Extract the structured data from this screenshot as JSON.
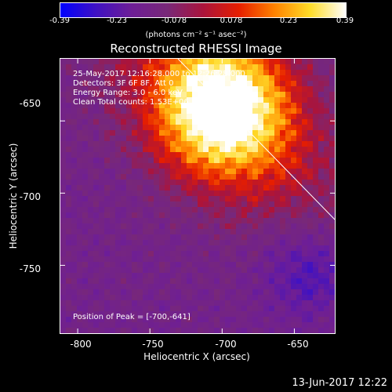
{
  "colorbar": {
    "ticks": [
      "-0.39",
      "-0.23",
      "-0.078",
      "0.078",
      "0.23",
      "0.39"
    ],
    "unit": "(photons cm⁻² s⁻¹ asec⁻²)"
  },
  "info": {
    "line1": "25-May-2017 12:16:28.000 to 12:26:28.000",
    "line2": "Detectors: 3F 6F 8F, Att 0",
    "line3": "Energy Range: 3.0 - 6.0 keV",
    "line4": "Clean    Total counts: 1.53E+06",
    "peak": "Position of Peak = [-700,-641]"
  },
  "footer": "13-Jun-2017 12:22",
  "chart_data": {
    "type": "heatmap",
    "title": "Reconstructed RHESSI Image",
    "xlabel": "Heliocentric X (arcsec)",
    "ylabel": "Heliocentric Y (arcsec)",
    "xlim": [
      -812,
      -622
    ],
    "ylim": [
      -797,
      -607
    ],
    "x_ticks": [
      "-800",
      "-750",
      "-700",
      "-650"
    ],
    "x_tick_values": [
      -800,
      -750,
      -700,
      -650
    ],
    "y_ticks": [
      "-650",
      "-700",
      "-750"
    ],
    "y_tick_values": [
      -650,
      -700,
      -750
    ],
    "value_range": [
      -0.39,
      0.39
    ],
    "peak": [
      -700,
      -641
    ],
    "colors": {
      "low": "#0000ff",
      "mid": "#800080",
      "high": "#ffffff"
    }
  }
}
